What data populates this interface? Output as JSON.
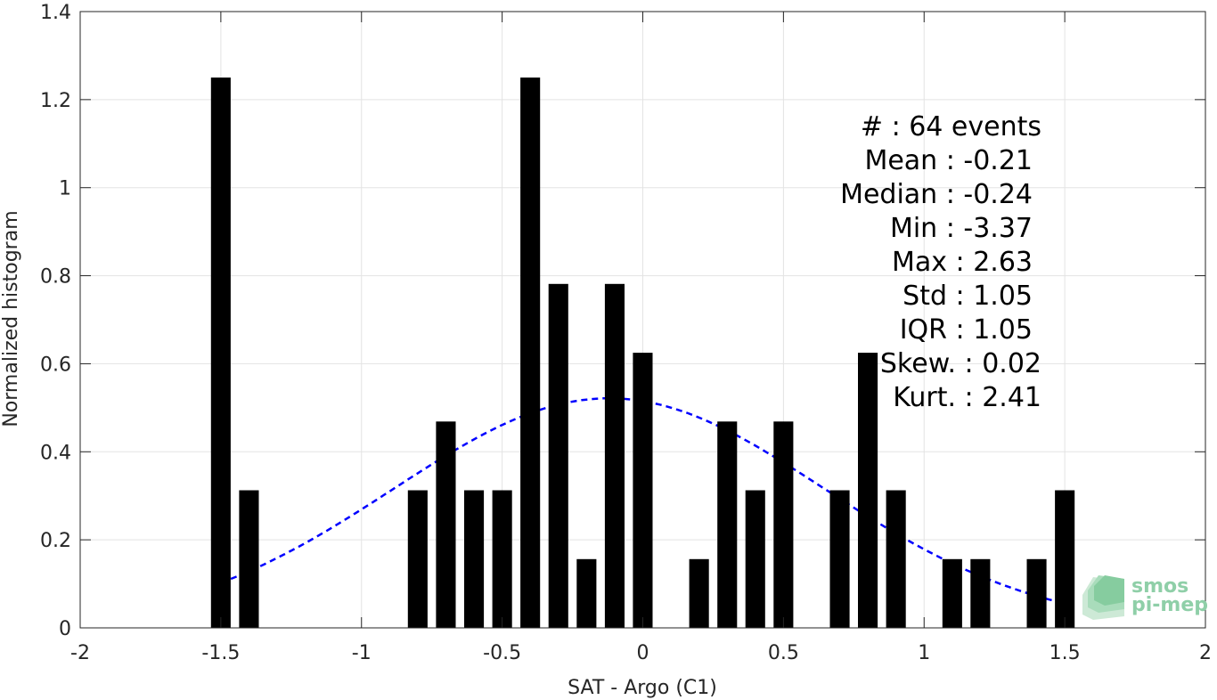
{
  "chart_data": {
    "type": "bar",
    "xlabel": "SAT - Argo (C1)",
    "ylabel": "Normalized histogram",
    "xlim": [
      -2,
      2
    ],
    "ylim": [
      0,
      1.4
    ],
    "xticks": [
      -2,
      -1.5,
      -1,
      -0.5,
      0,
      0.5,
      1,
      1.5,
      2
    ],
    "xtick_labels": [
      "-2",
      "-1.5",
      "-1",
      "-0.5",
      "0",
      "0.5",
      "1",
      "1.5",
      "2"
    ],
    "yticks": [
      0,
      0.2,
      0.4,
      0.6,
      0.8,
      1,
      1.2,
      1.4
    ],
    "ytick_labels": [
      "0",
      "0.2",
      "0.4",
      "0.6",
      "0.8",
      "1",
      "1.2",
      "1.4"
    ],
    "grid": true,
    "bar_width": 0.07,
    "bar_color": "#000000",
    "bars": [
      {
        "x": -1.5,
        "y": 1.25
      },
      {
        "x": -1.4,
        "y": 0.3125
      },
      {
        "x": -0.8,
        "y": 0.3125
      },
      {
        "x": -0.7,
        "y": 0.46875
      },
      {
        "x": -0.6,
        "y": 0.3125
      },
      {
        "x": -0.5,
        "y": 0.3125
      },
      {
        "x": -0.4,
        "y": 1.25
      },
      {
        "x": -0.3,
        "y": 0.78125
      },
      {
        "x": -0.2,
        "y": 0.15625
      },
      {
        "x": -0.1,
        "y": 0.78125
      },
      {
        "x": 0.0,
        "y": 0.625
      },
      {
        "x": 0.2,
        "y": 0.15625
      },
      {
        "x": 0.3,
        "y": 0.46875
      },
      {
        "x": 0.4,
        "y": 0.3125
      },
      {
        "x": 0.5,
        "y": 0.46875
      },
      {
        "x": 0.7,
        "y": 0.3125
      },
      {
        "x": 0.8,
        "y": 0.625
      },
      {
        "x": 0.9,
        "y": 0.3125
      },
      {
        "x": 1.1,
        "y": 0.15625
      },
      {
        "x": 1.2,
        "y": 0.15625
      },
      {
        "x": 1.4,
        "y": 0.15625
      },
      {
        "x": 1.5,
        "y": 0.3125
      }
    ],
    "fit_curve": {
      "type": "normal",
      "color": "#0000ff",
      "style": "dashed",
      "mu": -0.12,
      "sigma": 0.765,
      "x_range": [
        -1.5,
        1.52
      ]
    },
    "stats_lines": [
      "#  : 64 events",
      "Mean : -0.21",
      "Median : -0.24",
      "Min : -3.37",
      "Max : 2.63",
      "Std : 1.05",
      "IQR : 1.05",
      "Skew. : 0.02",
      "Kurt. : 2.41"
    ],
    "logo": {
      "line1": "smos",
      "line2": "pi-mep",
      "color": "#8fcfa8"
    }
  }
}
